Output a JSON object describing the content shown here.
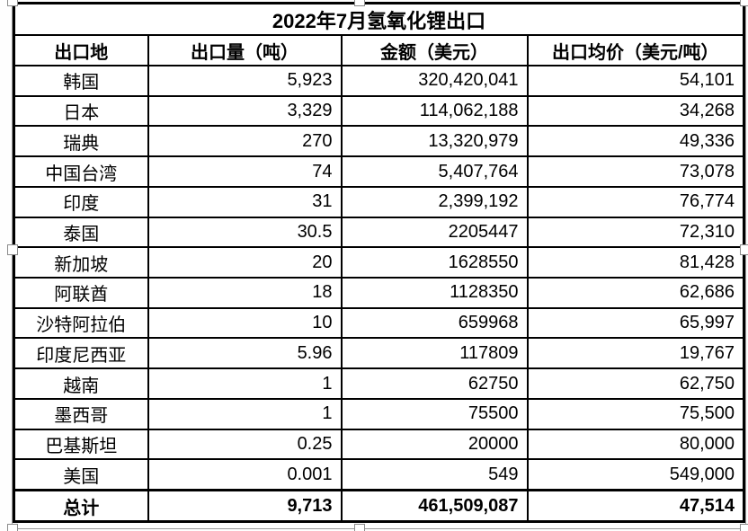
{
  "title": "2022年7月氢氧化锂出口",
  "table": {
    "headers": [
      "出口地",
      "出口量（吨）",
      "金额（美元）",
      "出口均价（美元/吨）"
    ],
    "rows": [
      [
        "韩国",
        "5,923",
        "320,420,041",
        "54,101"
      ],
      [
        "日本",
        "3,329",
        "114,062,188",
        "34,268"
      ],
      [
        "瑞典",
        "270",
        "13,320,979",
        "49,336"
      ],
      [
        "中国台湾",
        "74",
        "5,407,764",
        "73,078"
      ],
      [
        "印度",
        "31",
        "2,399,192",
        "76,774"
      ],
      [
        "泰国",
        "30.5",
        "2205447",
        "72,310"
      ],
      [
        "新加坡",
        "20",
        "1628550",
        "81,428"
      ],
      [
        "阿联酋",
        "18",
        "1128350",
        "62,686"
      ],
      [
        "沙特阿拉伯",
        "10",
        "659968",
        "65,997"
      ],
      [
        "印度尼西亚",
        "5.96",
        "117809",
        "19,767"
      ],
      [
        "越南",
        "1",
        "62750",
        "62,750"
      ],
      [
        "墨西哥",
        "1",
        "75500",
        "75,500"
      ],
      [
        "巴基斯坦",
        "0.25",
        "20000",
        "80,000"
      ],
      [
        "美国",
        "0.001",
        "549",
        "549,000"
      ]
    ],
    "total_row": [
      "总计",
      "9,713",
      "461,509,087",
      "47,514"
    ]
  },
  "colors": {
    "border": "#000000",
    "background": "#ffffff",
    "selection_outline": "#9a9a9a"
  },
  "chart_data": {
    "type": "table",
    "title": "2022年7月氢氧化锂出口",
    "columns": [
      "出口地",
      "出口量（吨）",
      "金额（美元）",
      "出口均价（美元/吨）"
    ],
    "rows": [
      {
        "destination": "韩国",
        "volume_tons": 5923,
        "amount_usd": 320420041,
        "avg_price_usd_per_ton": 54101
      },
      {
        "destination": "日本",
        "volume_tons": 3329,
        "amount_usd": 114062188,
        "avg_price_usd_per_ton": 34268
      },
      {
        "destination": "瑞典",
        "volume_tons": 270,
        "amount_usd": 13320979,
        "avg_price_usd_per_ton": 49336
      },
      {
        "destination": "中国台湾",
        "volume_tons": 74,
        "amount_usd": 5407764,
        "avg_price_usd_per_ton": 73078
      },
      {
        "destination": "印度",
        "volume_tons": 31,
        "amount_usd": 2399192,
        "avg_price_usd_per_ton": 76774
      },
      {
        "destination": "泰国",
        "volume_tons": 30.5,
        "amount_usd": 2205447,
        "avg_price_usd_per_ton": 72310
      },
      {
        "destination": "新加坡",
        "volume_tons": 20,
        "amount_usd": 1628550,
        "avg_price_usd_per_ton": 81428
      },
      {
        "destination": "阿联酋",
        "volume_tons": 18,
        "amount_usd": 1128350,
        "avg_price_usd_per_ton": 62686
      },
      {
        "destination": "沙特阿拉伯",
        "volume_tons": 10,
        "amount_usd": 659968,
        "avg_price_usd_per_ton": 65997
      },
      {
        "destination": "印度尼西亚",
        "volume_tons": 5.96,
        "amount_usd": 117809,
        "avg_price_usd_per_ton": 19767
      },
      {
        "destination": "越南",
        "volume_tons": 1,
        "amount_usd": 62750,
        "avg_price_usd_per_ton": 62750
      },
      {
        "destination": "墨西哥",
        "volume_tons": 1,
        "amount_usd": 75500,
        "avg_price_usd_per_ton": 75500
      },
      {
        "destination": "巴基斯坦",
        "volume_tons": 0.25,
        "amount_usd": 20000,
        "avg_price_usd_per_ton": 80000
      },
      {
        "destination": "美国",
        "volume_tons": 0.001,
        "amount_usd": 549,
        "avg_price_usd_per_ton": 549000
      }
    ],
    "total": {
      "destination": "总计",
      "volume_tons": 9713,
      "amount_usd": 461509087,
      "avg_price_usd_per_ton": 47514
    }
  }
}
